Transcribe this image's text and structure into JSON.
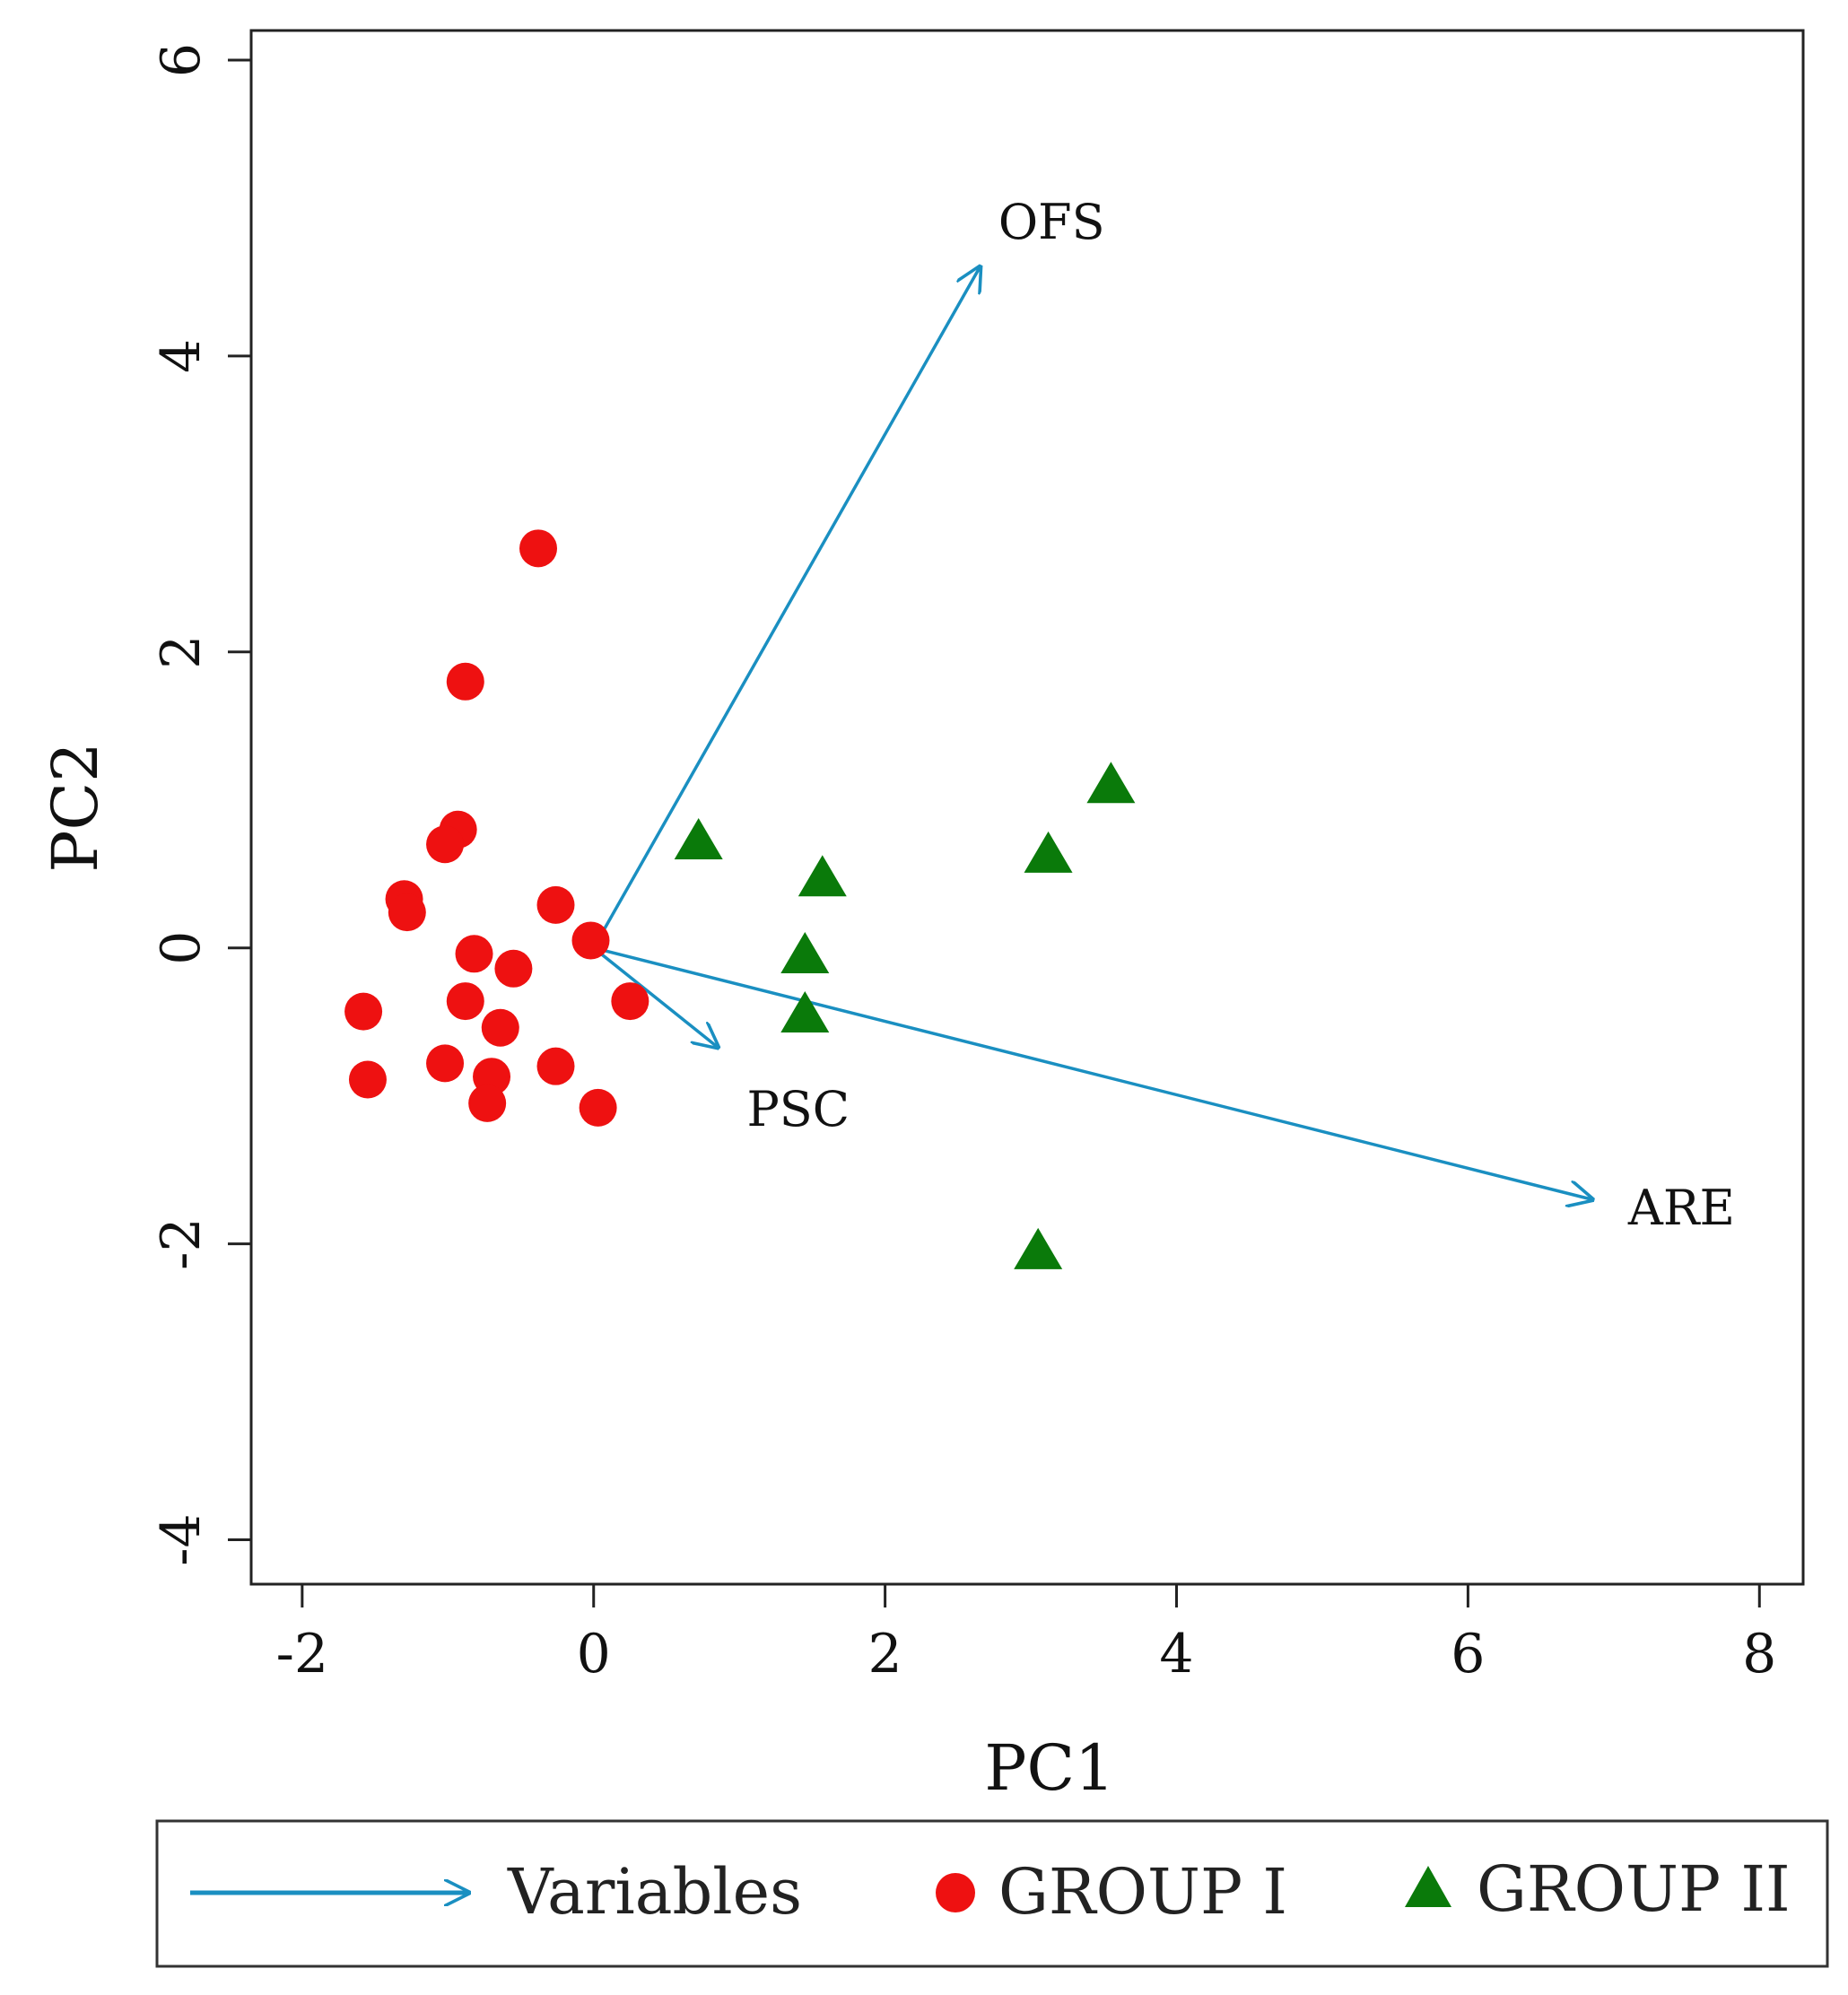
{
  "chart_data": {
    "type": "scatter",
    "subtype": "pca-biplot",
    "xlabel": "PC1",
    "ylabel": "PC2",
    "xlim": [
      -2.35,
      8.3
    ],
    "ylim": [
      -4.3,
      6.2
    ],
    "x_ticks": [
      "-2",
      "0",
      "2",
      "4",
      "6",
      "8"
    ],
    "x_tick_values": [
      -2,
      0,
      2,
      4,
      6,
      8
    ],
    "y_ticks": [
      "-4",
      "-2",
      "0",
      "2",
      "4",
      "6"
    ],
    "y_tick_values": [
      -4,
      -2,
      0,
      2,
      4,
      6
    ],
    "grid": false,
    "series": [
      {
        "name": "GROUP I",
        "marker": "circle",
        "color": "#ee1111",
        "points": [
          [
            -0.38,
            2.7
          ],
          [
            -0.88,
            1.8
          ],
          [
            -0.93,
            0.8
          ],
          [
            -1.02,
            0.7
          ],
          [
            -1.3,
            0.33
          ],
          [
            -1.28,
            0.24
          ],
          [
            -0.26,
            0.29
          ],
          [
            -0.02,
            0.05
          ],
          [
            -0.82,
            -0.04
          ],
          [
            -0.55,
            -0.14
          ],
          [
            -1.58,
            -0.43
          ],
          [
            -0.88,
            -0.36
          ],
          [
            -0.64,
            -0.54
          ],
          [
            0.25,
            -0.36
          ],
          [
            -1.02,
            -0.78
          ],
          [
            -0.26,
            -0.8
          ],
          [
            -1.55,
            -0.89
          ],
          [
            -0.7,
            -0.87
          ],
          [
            -0.73,
            -1.05
          ],
          [
            0.03,
            -1.08
          ]
        ]
      },
      {
        "name": "GROUP II",
        "marker": "triangle",
        "color": "#0a7a0a",
        "points": [
          [
            3.55,
            1.09
          ],
          [
            0.72,
            0.71
          ],
          [
            3.12,
            0.62
          ],
          [
            1.57,
            0.46
          ],
          [
            1.45,
            -0.06
          ],
          [
            1.45,
            -0.46
          ],
          [
            3.05,
            -2.06
          ]
        ]
      }
    ],
    "variables": {
      "name": "Variables",
      "color": "#1a8fc1",
      "vectors": [
        {
          "label": "OFS",
          "x": 2.65,
          "y": 4.6
        },
        {
          "label": "PSC",
          "x": 0.85,
          "y": -0.67
        },
        {
          "label": "ARE",
          "x": 6.85,
          "y": -1.7
        }
      ]
    },
    "legend": {
      "placement": "bottom",
      "entries": [
        "Variables",
        "GROUP I",
        "GROUP II"
      ]
    }
  }
}
